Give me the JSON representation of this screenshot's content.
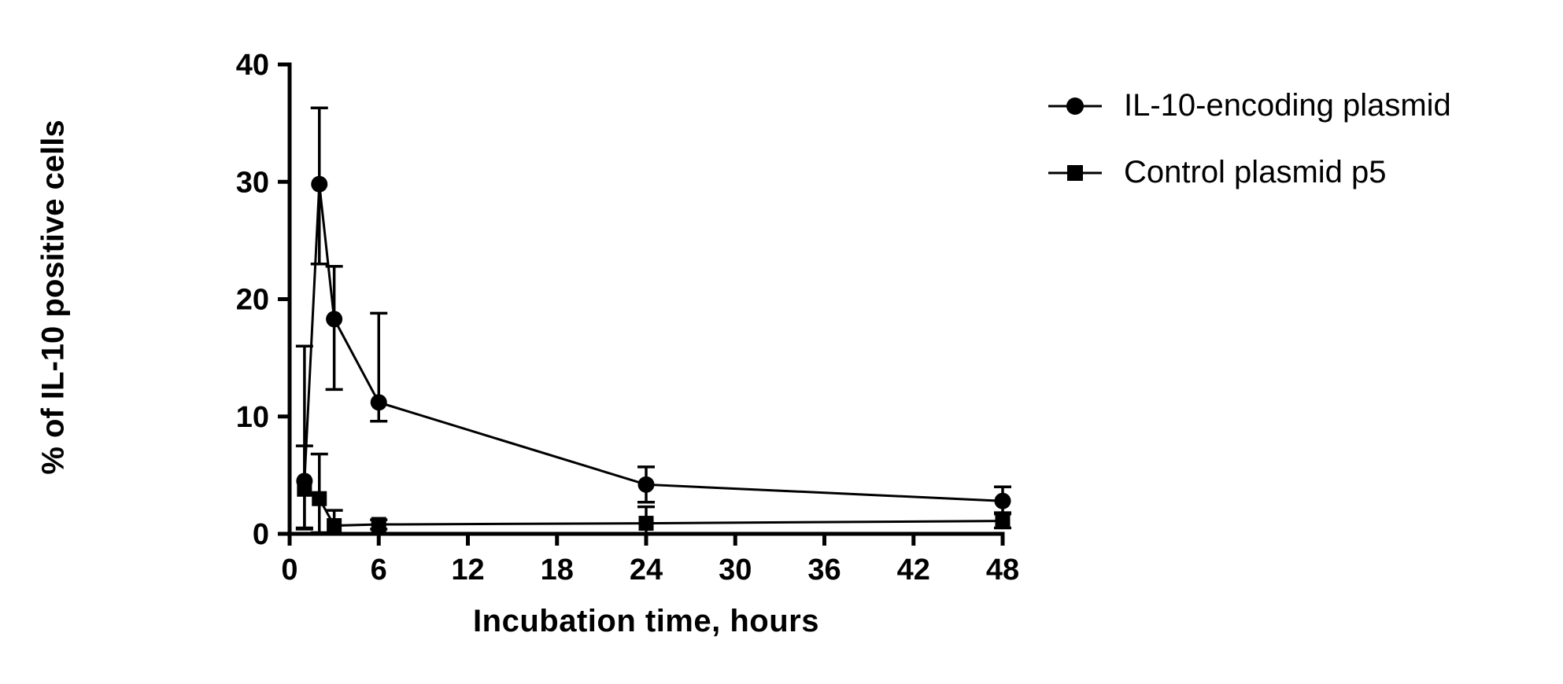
{
  "chart_data": {
    "type": "line",
    "title": "",
    "xlabel": "Incubation time, hours",
    "ylabel": "% of IL-10 positive cells",
    "xlim": [
      0,
      48
    ],
    "ylim": [
      0,
      40
    ],
    "xticks": [
      0,
      6,
      12,
      18,
      24,
      30,
      36,
      42,
      48
    ],
    "yticks": [
      0,
      10,
      20,
      30,
      40
    ],
    "grid": false,
    "legend_position": "top-right",
    "ink_color": "#000000",
    "error_bars": "sd, capped, both directions",
    "series": [
      {
        "name": "IL-10-encoding plasmid",
        "marker": "circle",
        "x": [
          1,
          2,
          3,
          6,
          24,
          48
        ],
        "y": [
          4.5,
          29.8,
          18.3,
          11.2,
          4.2,
          2.8
        ],
        "err_up": [
          11.5,
          6.5,
          4.5,
          7.6,
          1.5,
          1.2
        ],
        "err_down": [
          4.0,
          6.8,
          6.0,
          1.6,
          1.5,
          1.0
        ]
      },
      {
        "name": "Control plasmid p5",
        "marker": "square",
        "x": [
          1,
          2,
          3,
          6,
          24,
          48
        ],
        "y": [
          3.8,
          3.0,
          0.7,
          0.8,
          0.9,
          1.1
        ],
        "err_up": [
          3.7,
          3.8,
          1.3,
          0.4,
          1.4,
          0.6
        ],
        "err_down": [
          3.4,
          2.9,
          0.7,
          0.4,
          0.9,
          0.6
        ]
      }
    ]
  }
}
